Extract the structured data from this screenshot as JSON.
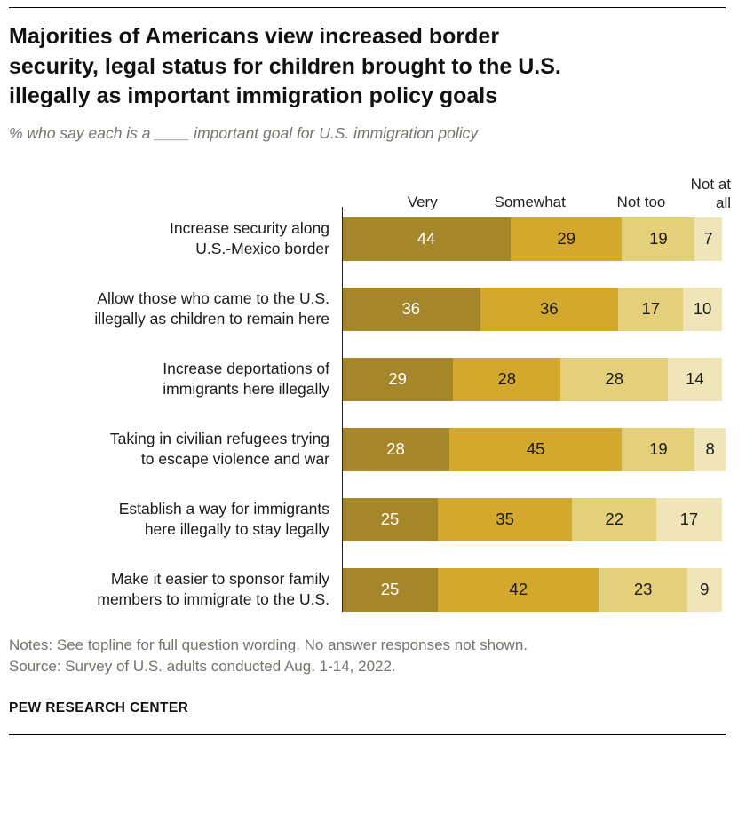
{
  "header": {
    "title_lines": [
      "Majorities of Americans view increased border",
      "security, legal status for children brought to the U.S.",
      "illegally as important immigration policy goals"
    ],
    "subtitle": "% who say each is a ____ important goal for U.S. immigration policy"
  },
  "chart_data": {
    "type": "bar",
    "stacked": true,
    "orientation": "horizontal",
    "title": "Majorities of Americans view increased border security, legal status for children brought to the U.S. illegally as important immigration policy goals",
    "subtitle": "% who say each is a ____ important goal for U.S. immigration policy",
    "x_max": 100,
    "value_unit": "%",
    "legend_position": "top-inline-headers",
    "column_headers": [
      "Very",
      "Somewhat",
      "Not too",
      "Not at all"
    ],
    "categories": [
      "Increase security along U.S.-Mexico border",
      "Allow those who came to the U.S. illegally as children to remain here",
      "Increase deportations of immigrants here illegally",
      "Taking in civilian refugees trying to escape violence and war",
      "Establish a way for immigrants here illegally to stay legally",
      "Make it easier to sponsor family members to immigrate to the U.S."
    ],
    "category_label_lines": [
      [
        "Increase security along",
        "U.S.-Mexico border"
      ],
      [
        "Allow those who came to the U.S.",
        "illegally as children to remain here"
      ],
      [
        "Increase deportations of",
        "immigrants here illegally"
      ],
      [
        "Taking in civilian refugees trying",
        "to escape violence and war"
      ],
      [
        "Establish a way for immigrants",
        "here illegally to stay legally"
      ],
      [
        "Make it easier to sponsor family",
        "members to immigrate to the U.S."
      ]
    ],
    "series": [
      {
        "name": "Very",
        "color": "#A5862B",
        "text_color": "#ffffff",
        "values": [
          44,
          36,
          29,
          28,
          25,
          25
        ]
      },
      {
        "name": "Somewhat",
        "color": "#D3A82C",
        "text_color": "#1a1a1a",
        "values": [
          29,
          36,
          28,
          45,
          35,
          42
        ]
      },
      {
        "name": "Not too",
        "color": "#E4CF7B",
        "text_color": "#1a1a1a",
        "values": [
          19,
          17,
          28,
          19,
          22,
          23
        ]
      },
      {
        "name": "Not at all",
        "color": "#F0E5B9",
        "text_color": "#1a1a1a",
        "values": [
          7,
          10,
          14,
          8,
          17,
          9
        ]
      }
    ]
  },
  "footer": {
    "notes": "Notes: See topline for full question wording. No answer responses not shown.",
    "source": "Source: Survey of U.S. adults conducted Aug. 1-14, 2022.",
    "brand": "PEW RESEARCH CENTER"
  }
}
